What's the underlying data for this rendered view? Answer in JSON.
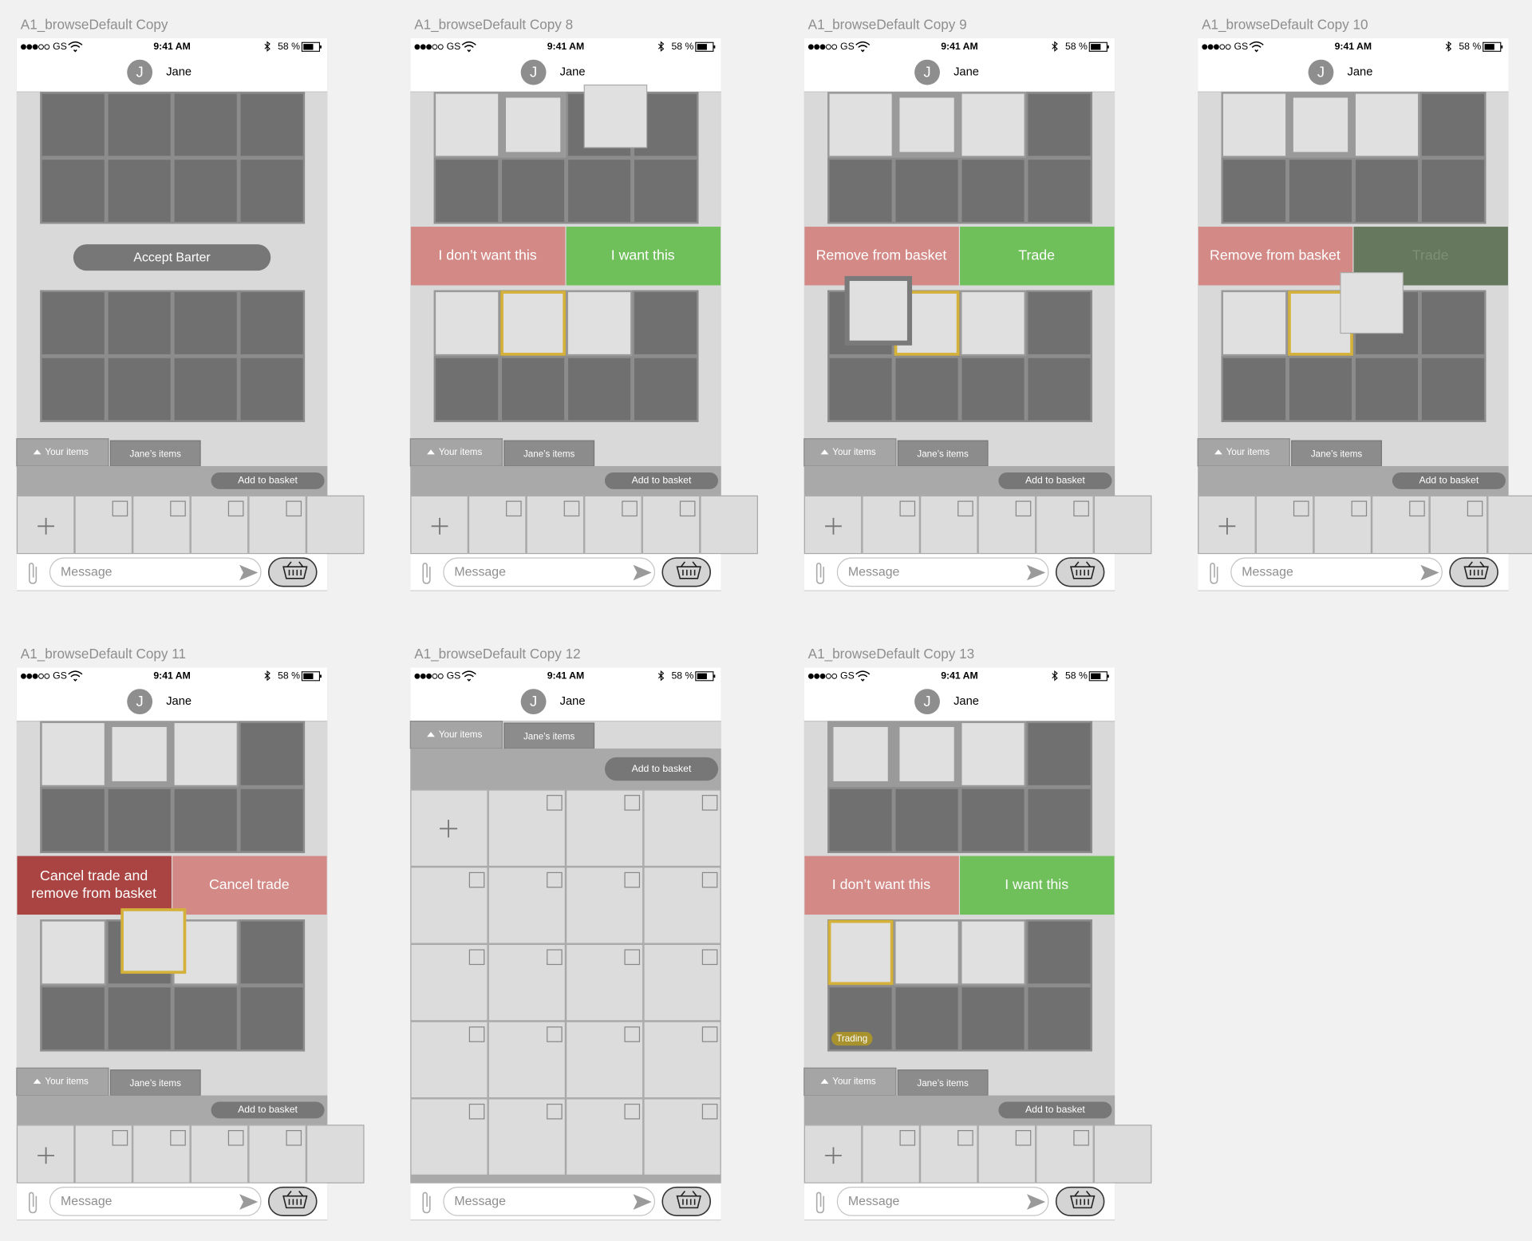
{
  "artboards": [
    {
      "label": "A1_browseDefault Copy",
      "carrier": "GS",
      "time": "9:41 AM",
      "battery": "58 %",
      "initial": "J",
      "name": "Jane",
      "center_button": "Accept Barter",
      "tabs": [
        "Your items",
        "Jane’s items"
      ],
      "add_button": "Add to basket",
      "placeholder": "Message"
    },
    {
      "label": "A1_browseDefault Copy 8",
      "carrier": "GS",
      "time": "9:41 AM",
      "battery": "58 %",
      "initial": "J",
      "name": "Jane",
      "actions": [
        "I don’t want this",
        "I want this"
      ],
      "tabs": [
        "Your items",
        "Jane’s items"
      ],
      "add_button": "Add to basket",
      "placeholder": "Message"
    },
    {
      "label": "A1_browseDefault Copy 9",
      "carrier": "GS",
      "time": "9:41 AM",
      "battery": "58 %",
      "initial": "J",
      "name": "Jane",
      "actions": [
        "Remove from basket",
        "Trade"
      ],
      "tabs": [
        "Your items",
        "Jane’s items"
      ],
      "add_button": "Add to basket",
      "placeholder": "Message"
    },
    {
      "label": "A1_browseDefault Copy 10",
      "carrier": "GS",
      "time": "9:41 AM",
      "battery": "58 %",
      "initial": "J",
      "name": "Jane",
      "actions": [
        "Remove from basket",
        "Trade"
      ],
      "tabs": [
        "Your items",
        "Jane’s items"
      ],
      "add_button": "Add to basket",
      "placeholder": "Message"
    },
    {
      "label": "A1_browseDefault Copy 11",
      "carrier": "GS",
      "time": "9:41 AM",
      "battery": "58 %",
      "initial": "J",
      "name": "Jane",
      "actions": [
        [
          "Cancel trade and",
          "remove from basket"
        ],
        "Cancel trade"
      ],
      "tabs": [
        "Your items",
        "Jane’s items"
      ],
      "add_button": "Add to basket",
      "placeholder": "Message"
    },
    {
      "label": "A1_browseDefault Copy 12",
      "carrier": "GS",
      "time": "9:41 AM",
      "battery": "58 %",
      "initial": "J",
      "name": "Jane",
      "tabs": [
        "Your items",
        "Jane’s items"
      ],
      "add_button": "Add to basket",
      "placeholder": "Message"
    },
    {
      "label": "A1_browseDefault Copy 13",
      "carrier": "GS",
      "time": "9:41 AM",
      "battery": "58 %",
      "initial": "J",
      "name": "Jane",
      "actions": [
        "I don’t want this",
        "I want this"
      ],
      "badge": "Trading",
      "tabs": [
        "Your items",
        "Jane’s items"
      ],
      "add_button": "Add to basket",
      "placeholder": "Message"
    }
  ]
}
